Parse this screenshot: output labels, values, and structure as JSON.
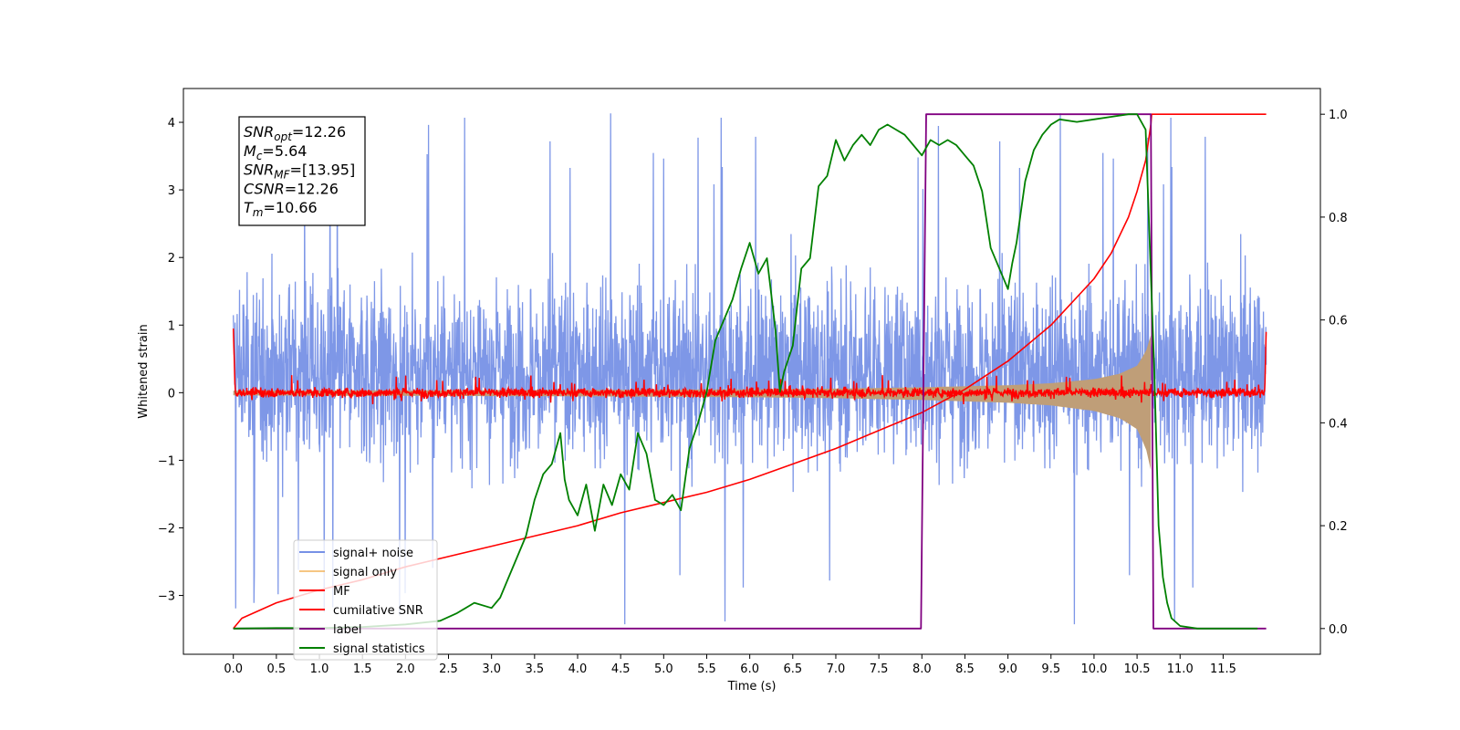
{
  "chart_data": {
    "type": "line",
    "xlabel": "Time (s)",
    "ylabel": "Whitened strain",
    "xlim": [
      -0.58,
      12.63
    ],
    "ylim_left": [
      -3.87,
      4.5
    ],
    "ylim_right": [
      -0.05,
      1.05
    ],
    "x_ticks": [
      "0.0",
      "0.5",
      "1.0",
      "1.5",
      "2.0",
      "2.5",
      "3.0",
      "3.5",
      "4.0",
      "4.5",
      "5.0",
      "5.5",
      "6.0",
      "6.5",
      "7.0",
      "7.5",
      "8.0",
      "8.5",
      "9.0",
      "9.5",
      "10.0",
      "10.5",
      "11.0",
      "11.5"
    ],
    "y_ticks_left": [
      "4",
      "3",
      "2",
      "1",
      "0",
      "−1",
      "−2",
      "−3"
    ],
    "y_ticks_right": [
      "1.0",
      "0.8",
      "0.6",
      "0.4",
      "0.2",
      "0.0"
    ],
    "grid": false,
    "annotation": [
      {
        "sym": "SNR",
        "sub": "opt",
        "value": "=12.26"
      },
      {
        "sym": "M",
        "sub": "c",
        "value": "=5.64"
      },
      {
        "sym": "SNR",
        "sub": "MF",
        "value": "=[13.95]"
      },
      {
        "sym": "CSNR",
        "sub": "",
        "value": "=12.26"
      },
      {
        "sym": "T",
        "sub": "m",
        "value": "=10.66"
      }
    ],
    "legend": {
      "placement": "lower-left",
      "entries": [
        "signal+ noise",
        "signal only",
        "MF",
        "cumilative SNR",
        "label",
        "signal statistics"
      ]
    },
    "colors": {
      "signal_noise": "#7791e6",
      "signal_only": "#f0a030",
      "signal_only_fill": "#bf9e78",
      "mf": "#ff0000",
      "cumulative_snr": "#ff0000",
      "label": "#800080",
      "signal_statistics": "#008000"
    },
    "series": [
      {
        "name": "signal+ noise",
        "axis": "left",
        "style": "noise-band",
        "x_range": [
          0.0,
          12.0
        ],
        "typical_range": [
          -1.5,
          2.2
        ],
        "extreme_range": [
          -3.45,
          4.15
        ]
      },
      {
        "name": "signal only",
        "axis": "left",
        "style": "chirp-envelope",
        "x": [
          0.0,
          2.0,
          4.0,
          6.0,
          7.0,
          8.0,
          9.0,
          9.5,
          10.0,
          10.3,
          10.5,
          10.6,
          10.66
        ],
        "envelope": [
          0.03,
          0.035,
          0.04,
          0.05,
          0.06,
          0.08,
          0.11,
          0.14,
          0.2,
          0.28,
          0.4,
          0.6,
          0.85
        ]
      },
      {
        "name": "MF",
        "axis": "left",
        "style": "noise-band",
        "x_range": [
          0.0,
          12.0
        ],
        "baseline": 0.0,
        "amplitude": 0.08,
        "spike_max": 0.22
      },
      {
        "name": "cumilative SNR",
        "axis": "right",
        "x": [
          0.0,
          0.1,
          0.5,
          1.0,
          1.5,
          2.0,
          2.5,
          3.0,
          3.5,
          4.0,
          4.5,
          5.0,
          5.5,
          6.0,
          6.5,
          7.0,
          7.5,
          8.0,
          8.5,
          9.0,
          9.5,
          10.0,
          10.2,
          10.4,
          10.5,
          10.6,
          10.66,
          10.67,
          12.0
        ],
        "y": [
          0.0,
          0.02,
          0.05,
          0.075,
          0.095,
          0.12,
          0.14,
          0.16,
          0.18,
          0.2,
          0.225,
          0.245,
          0.265,
          0.29,
          0.32,
          0.35,
          0.385,
          0.42,
          0.465,
          0.52,
          0.59,
          0.68,
          0.73,
          0.8,
          0.85,
          0.91,
          0.98,
          1.0,
          1.0
        ]
      },
      {
        "name": "label",
        "axis": "right",
        "x": [
          0.0,
          7.99,
          8.05,
          10.66,
          10.69,
          12.0
        ],
        "y": [
          0.0,
          0.0,
          1.0,
          1.0,
          0.0,
          0.0
        ]
      },
      {
        "name": "signal statistics",
        "axis": "right",
        "x": [
          0.0,
          0.5,
          1.0,
          1.5,
          2.0,
          2.4,
          2.6,
          2.8,
          3.0,
          3.1,
          3.2,
          3.3,
          3.4,
          3.5,
          3.6,
          3.7,
          3.75,
          3.8,
          3.85,
          3.9,
          4.0,
          4.1,
          4.2,
          4.3,
          4.4,
          4.5,
          4.6,
          4.7,
          4.8,
          4.9,
          5.0,
          5.1,
          5.2,
          5.3,
          5.4,
          5.5,
          5.6,
          5.7,
          5.8,
          5.9,
          6.0,
          6.1,
          6.2,
          6.3,
          6.35,
          6.4,
          6.5,
          6.6,
          6.7,
          6.8,
          6.9,
          7.0,
          7.05,
          7.1,
          7.2,
          7.3,
          7.4,
          7.5,
          7.6,
          7.7,
          7.8,
          7.9,
          8.0,
          8.1,
          8.2,
          8.3,
          8.4,
          8.5,
          8.6,
          8.7,
          8.8,
          8.9,
          9.0,
          9.05,
          9.1,
          9.2,
          9.3,
          9.4,
          9.5,
          9.6,
          9.8,
          10.0,
          10.2,
          10.4,
          10.5,
          10.6,
          10.7,
          10.75,
          10.8,
          10.85,
          10.9,
          11.0,
          11.2,
          11.5,
          11.9
        ],
        "y": [
          0.0,
          0.001,
          0.001,
          0.003,
          0.008,
          0.015,
          0.03,
          0.05,
          0.04,
          0.06,
          0.1,
          0.14,
          0.18,
          0.25,
          0.3,
          0.32,
          0.35,
          0.38,
          0.29,
          0.25,
          0.22,
          0.28,
          0.19,
          0.28,
          0.24,
          0.3,
          0.27,
          0.38,
          0.34,
          0.25,
          0.24,
          0.26,
          0.23,
          0.35,
          0.4,
          0.46,
          0.56,
          0.6,
          0.64,
          0.7,
          0.75,
          0.69,
          0.72,
          0.58,
          0.46,
          0.5,
          0.55,
          0.7,
          0.72,
          0.86,
          0.88,
          0.95,
          0.93,
          0.91,
          0.94,
          0.96,
          0.94,
          0.97,
          0.98,
          0.97,
          0.96,
          0.94,
          0.92,
          0.95,
          0.94,
          0.95,
          0.94,
          0.92,
          0.9,
          0.85,
          0.74,
          0.7,
          0.66,
          0.71,
          0.75,
          0.87,
          0.93,
          0.96,
          0.98,
          0.99,
          0.985,
          0.99,
          0.995,
          1.0,
          1.0,
          0.97,
          0.5,
          0.2,
          0.1,
          0.05,
          0.02,
          0.005,
          0.0,
          0.0,
          0.0
        ]
      }
    ]
  }
}
